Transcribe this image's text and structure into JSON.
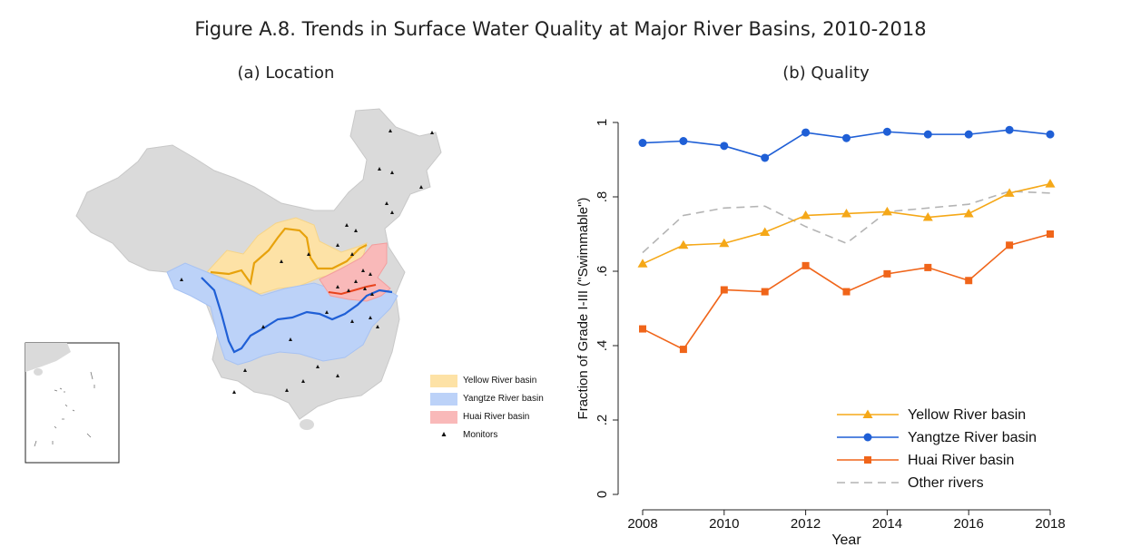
{
  "figure_title": "Figure A.8. Trends in Surface Water Quality at Major River Basins, 2010-2018",
  "panels": {
    "map": {
      "title": "(a) Location",
      "legend": [
        {
          "label": "Yellow River basin",
          "color": "#fde2a6"
        },
        {
          "label": "Yangtze River basin",
          "color": "#bcd2f8"
        },
        {
          "label": "Huai River basin",
          "color": "#f9b9b9"
        },
        {
          "label": "Monitors",
          "color": "#111111"
        }
      ]
    },
    "quality": {
      "title": "(b) Quality"
    }
  },
  "chart_data": {
    "type": "line",
    "title": "(b) Quality",
    "xlabel": "Year",
    "ylabel": "Fraction of Grade I-III (\"Swimmable\")",
    "x": [
      2008,
      2009,
      2010,
      2011,
      2012,
      2013,
      2014,
      2015,
      2016,
      2017,
      2018
    ],
    "xlim": [
      2008,
      2018
    ],
    "ylim": [
      0,
      1
    ],
    "xticks": [
      2008,
      2010,
      2012,
      2014,
      2016,
      2018
    ],
    "yticks": [
      0,
      0.2,
      0.4,
      0.6,
      0.8,
      1
    ],
    "ytick_labels": [
      "0",
      ".2",
      ".4",
      ".6",
      ".8",
      "1"
    ],
    "grid": false,
    "legend_position": "bottom-right",
    "series": [
      {
        "name": "Yellow River basin",
        "color": "#f5a818",
        "marker": "triangle",
        "values": [
          0.62,
          0.67,
          0.675,
          0.705,
          0.75,
          0.755,
          0.76,
          0.745,
          0.755,
          0.81,
          0.835
        ]
      },
      {
        "name": "Yangtze River basin",
        "color": "#1f5fd6",
        "marker": "circle",
        "values": [
          0.945,
          0.95,
          0.937,
          0.905,
          0.973,
          0.958,
          0.975,
          0.968,
          0.968,
          0.98,
          0.968
        ]
      },
      {
        "name": "Huai River basin",
        "color": "#f0651a",
        "marker": "square",
        "values": [
          0.445,
          0.39,
          0.55,
          0.545,
          0.615,
          0.545,
          0.593,
          0.61,
          0.575,
          0.67,
          0.7
        ]
      },
      {
        "name": "Other rivers",
        "color": "#b4b4b4",
        "marker": "none",
        "dash": true,
        "values": [
          0.65,
          0.75,
          0.77,
          0.775,
          0.72,
          0.675,
          0.76,
          0.77,
          0.78,
          0.815,
          0.81
        ]
      }
    ]
  }
}
